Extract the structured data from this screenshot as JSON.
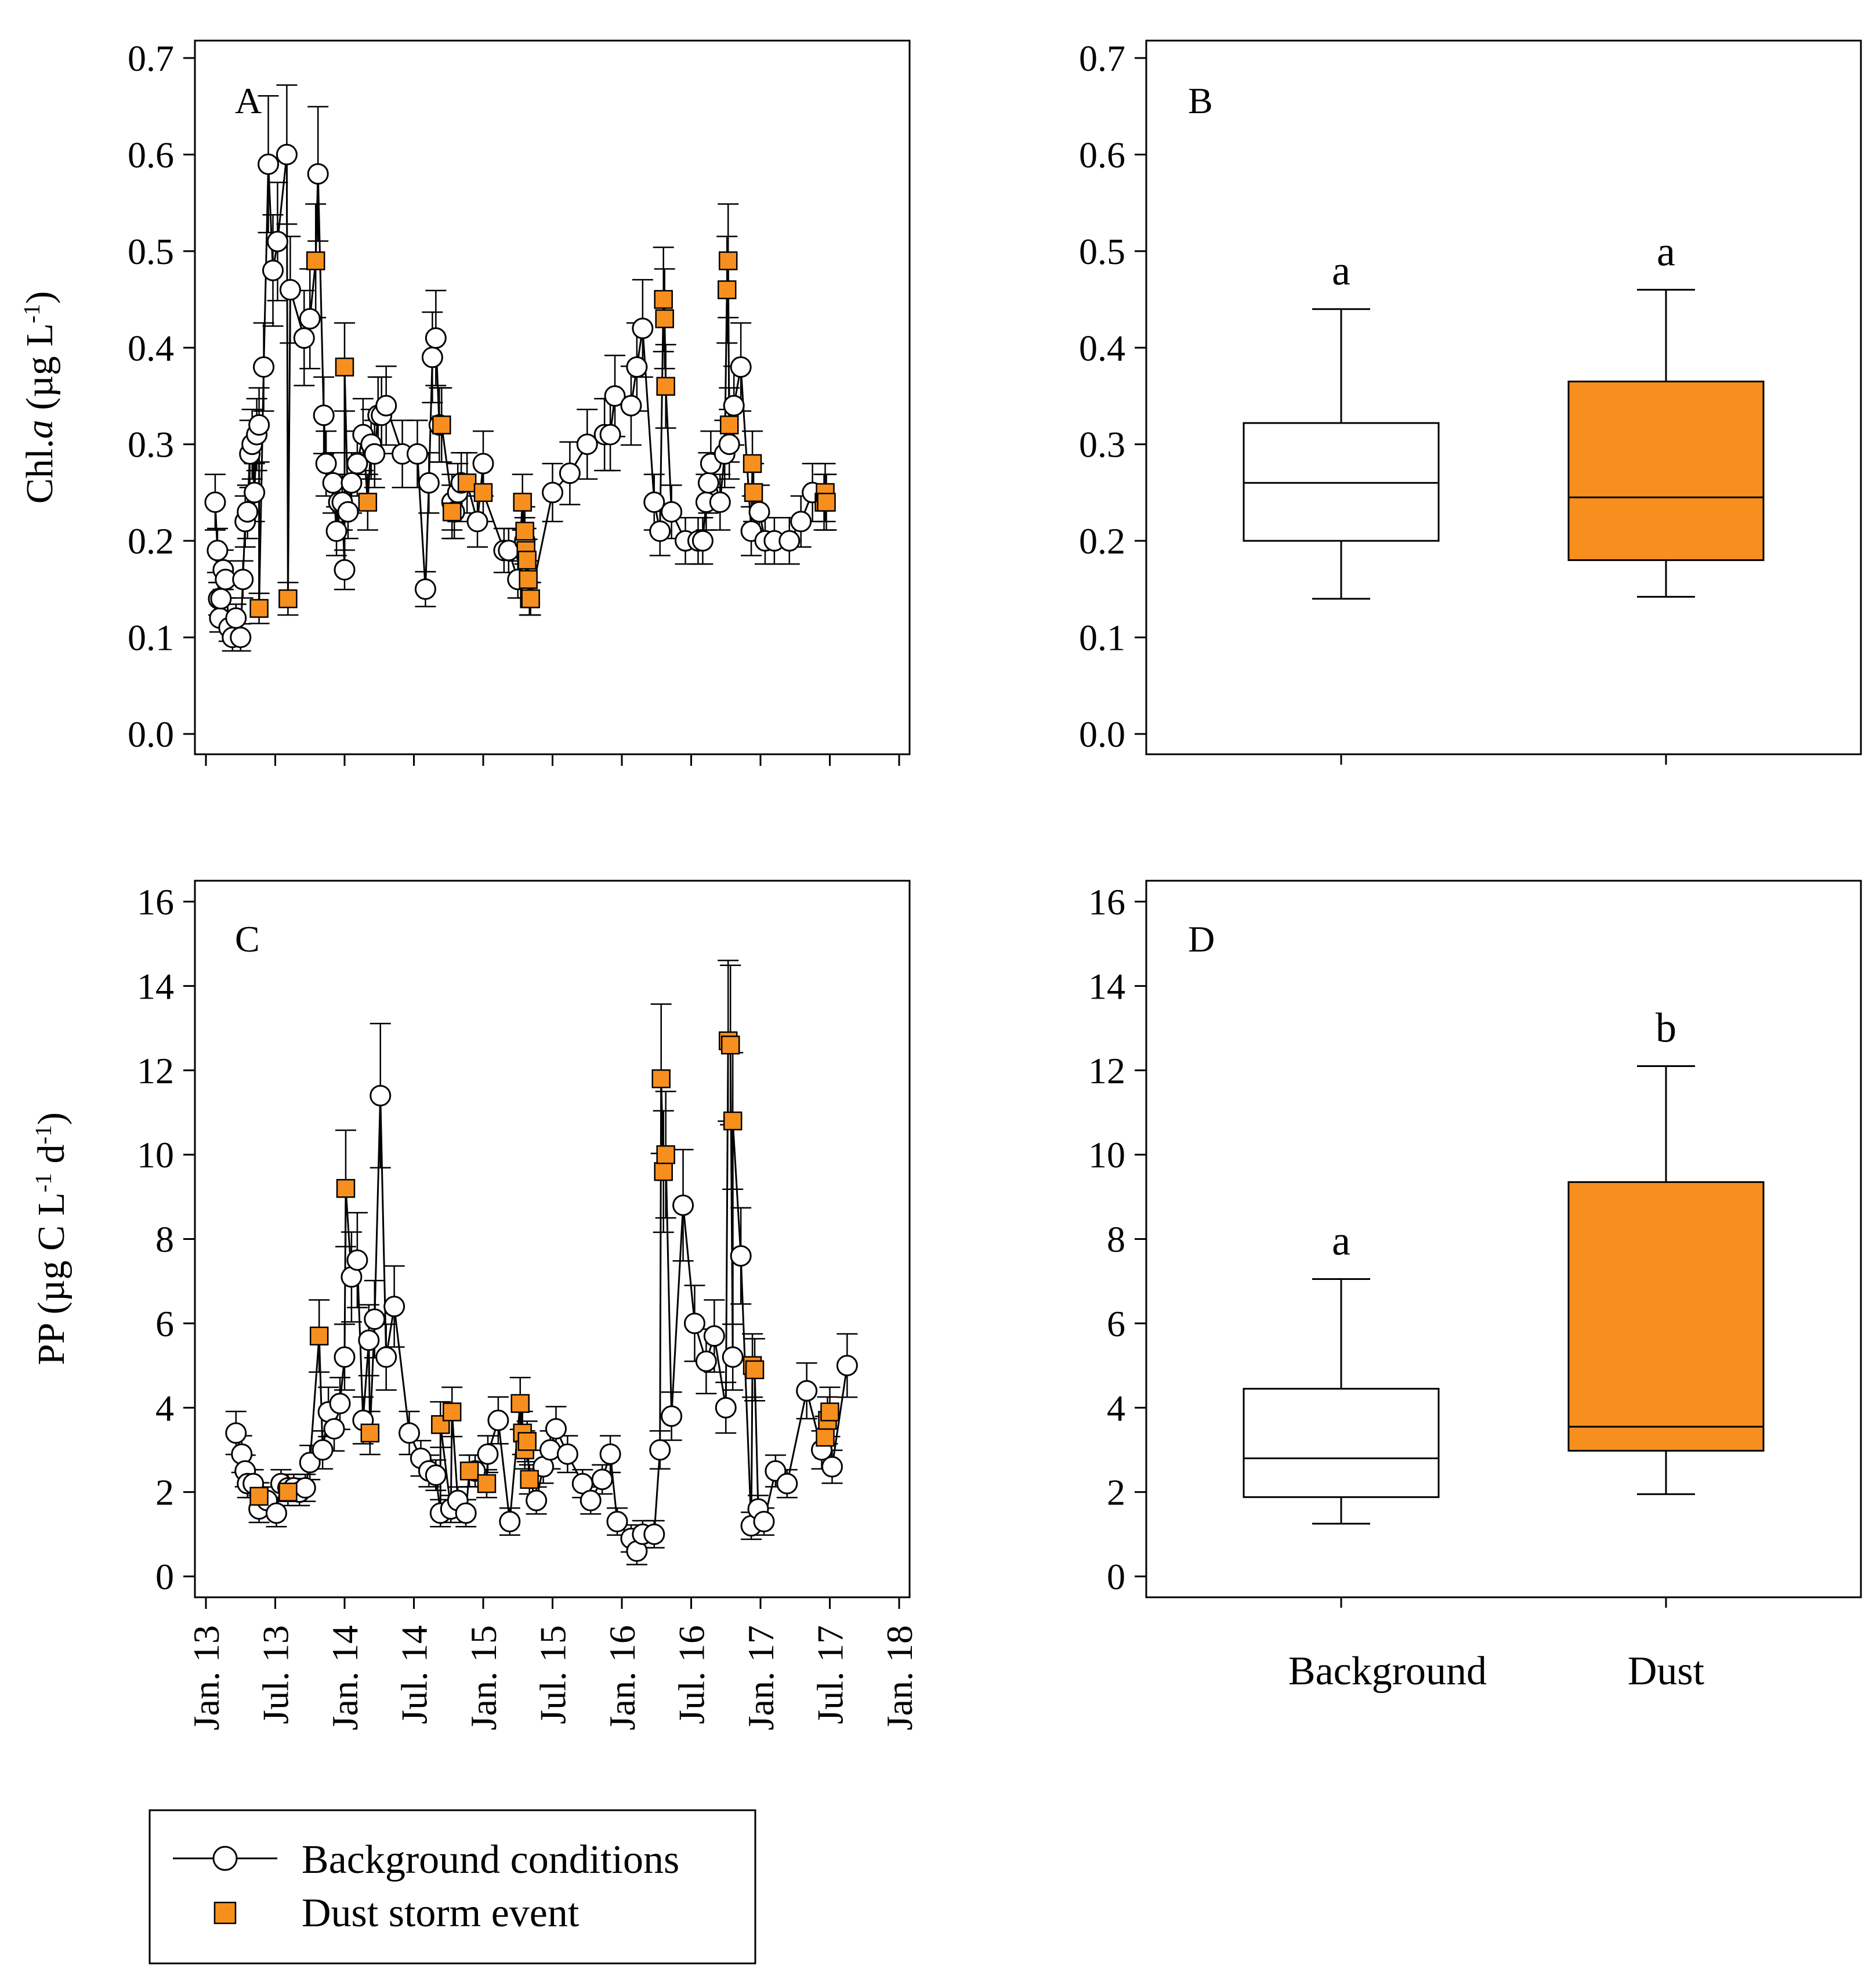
{
  "chart_data": [
    {
      "panel": "A",
      "type": "line",
      "ylabel": "Chl.a (µg L-1)",
      "ylim": [
        0,
        0.7
      ],
      "yticks": [
        "0.0",
        "0.1",
        "0.2",
        "0.3",
        "0.4",
        "0.5",
        "0.6",
        "0.7"
      ],
      "x_is_months_since_jan_2013": true,
      "xlim": [
        0,
        60
      ],
      "series": [
        {
          "name": "Background conditions",
          "x": [
            0.8,
            1.0,
            1.1,
            1.2,
            1.3,
            1.5,
            1.7,
            2.0,
            2.3,
            2.6,
            3.0,
            3.2,
            3.4,
            3.6,
            3.8,
            4.0,
            4.2,
            4.4,
            4.6,
            5.0,
            5.4,
            5.8,
            6.2,
            7.0,
            7.3,
            8.5,
            9.0,
            9.7,
            10.2,
            10.4,
            11.0,
            11.3,
            11.5,
            11.8,
            12.0,
            12.3,
            12.6,
            13.1,
            13.6,
            14.3,
            14.6,
            14.9,
            15.2,
            15.6,
            17.0,
            18.3,
            19.0,
            19.3,
            19.6,
            19.9,
            20.2,
            21.3,
            21.5,
            21.8,
            22.1,
            23.5,
            24.0,
            25.8,
            26.2,
            27.0,
            27.6,
            30.0,
            31.5,
            33.0,
            34.5,
            35.0,
            35.4,
            36.8,
            37.3,
            37.8,
            38.8,
            39.3,
            40.3,
            41.5,
            42.6,
            43.0,
            43.3,
            43.5,
            43.7,
            44.5,
            44.9,
            45.3,
            45.7,
            46.3,
            47.2,
            47.9,
            48.4,
            49.2,
            50.5,
            51.5,
            52.5
          ],
          "y": [
            0.24,
            0.19,
            0.14,
            0.12,
            0.14,
            0.17,
            0.16,
            0.11,
            0.1,
            0.12,
            0.1,
            0.16,
            0.22,
            0.23,
            0.29,
            0.3,
            0.25,
            0.31,
            0.32,
            0.38,
            0.59,
            0.48,
            0.51,
            0.6,
            0.46,
            0.41,
            0.43,
            0.58,
            0.33,
            0.28,
            0.26,
            0.21,
            0.24,
            0.24,
            0.17,
            0.23,
            0.26,
            0.28,
            0.31,
            0.3,
            0.29,
            0.33,
            0.33,
            0.34,
            0.29,
            0.29,
            0.15,
            0.26,
            0.39,
            0.41,
            0.32,
            0.24,
            0.23,
            0.25,
            0.26,
            0.22,
            0.28,
            0.19,
            0.19,
            0.16,
            0.2,
            0.25,
            0.27,
            0.3,
            0.31,
            0.31,
            0.35,
            0.34,
            0.38,
            0.42,
            0.24,
            0.21,
            0.23,
            0.2,
            0.2,
            0.2,
            0.24,
            0.26,
            0.28,
            0.24,
            0.29,
            0.3,
            0.34,
            0.38,
            0.21,
            0.23,
            0.2,
            0.2,
            0.2,
            0.22,
            0.25
          ]
        },
        {
          "name": "Dust storm event",
          "x": [
            4.6,
            7.1,
            9.5,
            12.0,
            14.0,
            20.4,
            21.3,
            22.6,
            24.0,
            27.4,
            27.6,
            27.7,
            27.8,
            27.9,
            28.0,
            28.1,
            39.6,
            39.7,
            39.8,
            45.1,
            45.2,
            45.3,
            47.3,
            47.4,
            53.5,
            53.6,
            53.7
          ],
          "y": [
            0.13,
            0.14,
            0.49,
            0.38,
            0.24,
            0.32,
            0.23,
            0.26,
            0.25,
            0.24,
            0.21,
            0.19,
            0.18,
            0.16,
            0.14,
            0.14,
            0.45,
            0.43,
            0.36,
            0.46,
            0.49,
            0.32,
            0.28,
            0.25,
            0.24,
            0.25,
            0.24
          ]
        }
      ]
    },
    {
      "panel": "B",
      "type": "box",
      "categories": [
        "Background",
        "Dust"
      ],
      "ylim": [
        0,
        0.7
      ],
      "yticks": [
        "0.0",
        "0.1",
        "0.2",
        "0.3",
        "0.4",
        "0.5",
        "0.6",
        "0.7"
      ],
      "boxes": [
        {
          "name": "Background",
          "whisker_low": 0.14,
          "q1": 0.2,
          "median": 0.26,
          "q3": 0.322,
          "whisker_high": 0.44,
          "label": "a"
        },
        {
          "name": "Dust",
          "whisker_low": 0.142,
          "q1": 0.18,
          "median": 0.245,
          "q3": 0.365,
          "whisker_high": 0.46,
          "label": "a"
        }
      ]
    },
    {
      "panel": "C",
      "type": "line",
      "ylabel": "PP (µg C L-1 d-1)",
      "ylim": [
        0,
        16
      ],
      "yticks": [
        "0",
        "2",
        "4",
        "6",
        "8",
        "10",
        "12",
        "14",
        "16"
      ],
      "xticks": [
        "Jan. 13",
        "Jul. 13",
        "Jan. 14",
        "Jul. 14",
        "Jan. 15",
        "Jul. 15",
        "Jan. 16",
        "Jul. 16",
        "Jan. 17",
        "Jul. 17",
        "Jan. 18"
      ],
      "xlim": [
        0,
        60
      ],
      "series": [
        {
          "name": "Background conditions",
          "x": [
            2.6,
            3.1,
            3.4,
            3.6,
            4.1,
            4.6,
            5.3,
            6.1,
            6.5,
            7.1,
            7.6,
            8.1,
            8.6,
            9.0,
            10.1,
            10.6,
            11.1,
            11.6,
            12.0,
            12.6,
            13.1,
            13.6,
            14.1,
            14.6,
            15.1,
            15.6,
            16.3,
            17.6,
            18.6,
            19.3,
            19.9,
            20.3,
            21.2,
            21.8,
            22.5,
            23.3,
            24.4,
            25.3,
            26.3,
            28.6,
            29.2,
            29.8,
            30.3,
            31.3,
            32.6,
            33.3,
            34.3,
            35.0,
            35.6,
            36.8,
            37.3,
            37.8,
            38.8,
            39.3,
            40.3,
            41.3,
            42.3,
            43.3,
            44.0,
            45.0,
            45.6,
            46.3,
            47.2,
            47.8,
            48.3,
            49.3,
            50.3,
            52.0,
            53.3,
            54.2,
            55.5
          ],
          "y": [
            3.4,
            2.9,
            2.5,
            2.2,
            2.2,
            1.6,
            1.8,
            1.5,
            2.2,
            2.1,
            2.1,
            2.0,
            2.1,
            2.7,
            3.0,
            3.9,
            3.5,
            4.1,
            5.2,
            7.1,
            7.5,
            3.7,
            5.6,
            6.1,
            11.4,
            5.2,
            6.4,
            3.4,
            2.8,
            2.5,
            2.4,
            1.5,
            1.6,
            1.8,
            1.5,
            2.5,
            2.9,
            3.7,
            1.3,
            1.8,
            2.6,
            3.0,
            3.5,
            2.9,
            2.2,
            1.8,
            2.3,
            2.9,
            1.3,
            0.9,
            0.6,
            1.0,
            1.0,
            3.0,
            3.8,
            8.8,
            6.0,
            5.1,
            5.7,
            4.0,
            5.2,
            7.6,
            1.2,
            1.6,
            1.3,
            2.5,
            2.2,
            4.4,
            3.0,
            2.6,
            5.0
          ]
        },
        {
          "name": "Dust storm event",
          "x": [
            4.6,
            7.1,
            9.8,
            12.1,
            14.2,
            20.3,
            21.3,
            22.8,
            24.3,
            27.2,
            27.4,
            27.6,
            27.8,
            28.0,
            39.4,
            39.6,
            39.8,
            45.2,
            45.4,
            45.6,
            47.3,
            47.5,
            53.6,
            53.8,
            54.0
          ],
          "y": [
            1.9,
            2.0,
            5.7,
            9.2,
            3.4,
            3.6,
            3.9,
            2.5,
            2.2,
            4.1,
            3.4,
            3.0,
            3.2,
            2.3,
            11.8,
            9.6,
            10.0,
            12.7,
            12.6,
            10.8,
            5.0,
            4.9,
            3.3,
            3.7,
            3.9
          ]
        }
      ]
    },
    {
      "panel": "D",
      "type": "box",
      "categories": [
        "Background",
        "Dust"
      ],
      "ylim": [
        0,
        16
      ],
      "yticks": [
        "0",
        "2",
        "4",
        "6",
        "8",
        "10",
        "12",
        "14",
        "16"
      ],
      "boxes": [
        {
          "name": "Background",
          "whisker_low": 1.25,
          "q1": 1.88,
          "median": 2.8,
          "q3": 4.45,
          "whisker_high": 7.05,
          "label": "a"
        },
        {
          "name": "Dust",
          "whisker_low": 1.95,
          "q1": 2.98,
          "median": 3.55,
          "q3": 9.35,
          "whisker_high": 12.1,
          "label": "b"
        }
      ]
    }
  ],
  "panels": {
    "a": {
      "letter": "A",
      "ylabel_base": "Chl.",
      "ylabel_italic": "a",
      "ylabel_unit": " (µg L",
      "ylabel_sup": "-1",
      "ylabel_close": ")"
    },
    "b": {
      "letter": "B"
    },
    "c": {
      "letter": "C",
      "ylabel_base": "PP (µg C L",
      "ylabel_sup1": "-1",
      "ylabel_mid": " d",
      "ylabel_sup2": "-1",
      "ylabel_close": ")"
    },
    "d": {
      "letter": "D"
    }
  },
  "legend": {
    "background_label": "Background conditions",
    "dust_label": "Dust storm event"
  },
  "colors": {
    "dust": "#F78F1E",
    "background_marker": "#ffffff",
    "line": "#000000"
  }
}
